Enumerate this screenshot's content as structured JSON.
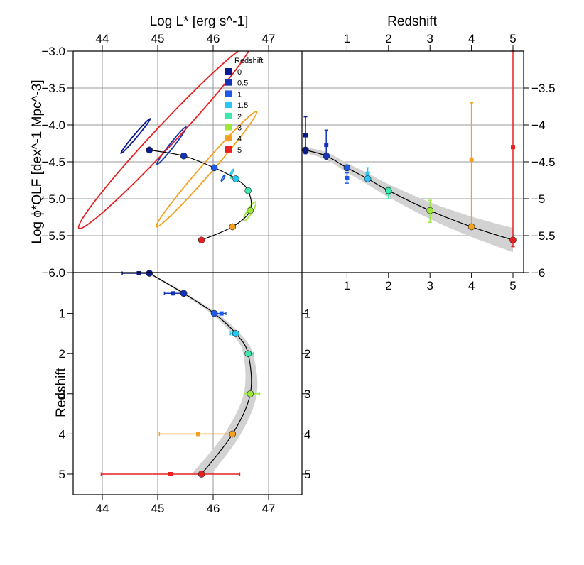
{
  "chart_data": [
    {
      "id": "luminosity-phi",
      "type": "scatter",
      "title": "",
      "xlabel": "Log L* [erg s^-1]",
      "ylabel": "Log ϕ*QLF [dex^-1 Mpc^-3]",
      "xlim": [
        43.6,
        47.6
      ],
      "ylim": [
        -6.0,
        -3.0
      ],
      "xticks": [
        44,
        45,
        46,
        47
      ],
      "yticks": [
        -3.0,
        -3.5,
        -4.0,
        -4.5,
        -5.0,
        -5.5,
        -6.0
      ],
      "ytick_labels": [
        "−3.0",
        "−3.5",
        "−4.0",
        "−4.5",
        "−5.0",
        "−5.5",
        "−6.0"
      ],
      "points": [
        {
          "z": "0",
          "logL": 44.85,
          "logphi": -4.34
        },
        {
          "z": "0.5",
          "logL": 45.47,
          "logphi": -4.42
        },
        {
          "z": "1",
          "logL": 46.02,
          "logphi": -4.58
        },
        {
          "z": "1.5",
          "logL": 46.41,
          "logphi": -4.73
        },
        {
          "z": "2",
          "logL": 46.63,
          "logphi": -4.89
        },
        {
          "z": "3",
          "logL": 46.67,
          "logphi": -5.16
        },
        {
          "z": "4",
          "logL": 46.35,
          "logphi": -5.38
        },
        {
          "z": "5",
          "logL": 45.79,
          "logphi": -5.56
        }
      ],
      "confidence_ellipses": [
        {
          "z": "0",
          "center_logL": 44.6,
          "center_logphi": -4.15,
          "semi_major": 0.34,
          "semi_minor": 0.03,
          "angle_deg": -50
        },
        {
          "z": "0.5",
          "center_logL": 45.25,
          "center_logphi": -4.28,
          "semi_major": 0.35,
          "semi_minor": 0.04,
          "angle_deg": -52
        },
        {
          "z": "1",
          "center_logL": 46.18,
          "center_logphi": -4.72,
          "semi_major": 0.05,
          "semi_minor": 0.014,
          "angle_deg": -60
        },
        {
          "z": "1.5",
          "center_logL": 46.34,
          "center_logphi": -4.64,
          "semi_major": 0.05,
          "semi_minor": 0.014,
          "angle_deg": -60
        },
        {
          "z": "2",
          "center_logL": 46.33,
          "center_logphi": -4.71,
          "semi_major": 0.015,
          "semi_minor": 0.004,
          "angle_deg": -60
        },
        {
          "z": "3",
          "center_logL": 46.66,
          "center_logphi": -5.17,
          "semi_major": 0.16,
          "semi_minor": 0.045,
          "angle_deg": -58
        },
        {
          "z": "4",
          "center_logL": 45.88,
          "center_logphi": -4.6,
          "semi_major": 1.15,
          "semi_minor": 0.1,
          "angle_deg": -49
        },
        {
          "z": "5",
          "center_logL": 45.12,
          "center_logphi": -4.16,
          "semi_major": 1.9,
          "semi_minor": 0.19,
          "angle_deg": -47
        }
      ],
      "legend": {
        "title": "Redshift",
        "placement": "top-center",
        "entries": [
          {
            "label": "0",
            "color": "#0a1a8c"
          },
          {
            "label": "0.5",
            "color": "#1433b8"
          },
          {
            "label": "1",
            "color": "#1f5ae6"
          },
          {
            "label": "1.5",
            "color": "#29c6f2"
          },
          {
            "label": "2",
            "color": "#3de8b0"
          },
          {
            "label": "3",
            "color": "#9be83a"
          },
          {
            "label": "4",
            "color": "#f5a01e"
          },
          {
            "label": "5",
            "color": "#e8201f"
          }
        ]
      }
    },
    {
      "id": "redshift-phi",
      "type": "scatter",
      "xlabel": "Redshift",
      "ylabel": "",
      "xlim": [
        -0.05,
        5.3
      ],
      "ylim": [
        -6.0,
        -3.0
      ],
      "xticks": [
        1,
        2,
        3,
        4,
        5
      ],
      "yticks": [
        -3.5,
        -4.0,
        -4.5,
        -5.0,
        -5.5,
        -6.0
      ],
      "ytick_labels": [
        "−3.5",
        "−4",
        "−4.5",
        "−5",
        "−5.5",
        "−6"
      ],
      "curve_points": [
        {
          "z": "0",
          "x": 0,
          "logphi": -4.34
        },
        {
          "z": "0.5",
          "x": 0.5,
          "logphi": -4.42
        },
        {
          "z": "1",
          "x": 1,
          "logphi": -4.58
        },
        {
          "z": "1.5",
          "x": 1.5,
          "logphi": -4.73
        },
        {
          "z": "2",
          "x": 2,
          "logphi": -4.89
        },
        {
          "z": "3",
          "x": 3,
          "logphi": -5.16
        },
        {
          "z": "4",
          "x": 4,
          "logphi": -5.38
        },
        {
          "z": "5",
          "x": 5,
          "logphi": -5.56
        }
      ],
      "measurements": [
        {
          "z": "0",
          "x": 0,
          "logphi": -4.14,
          "err_low": 0.25,
          "err_high": 0.25
        },
        {
          "z": "0.5",
          "x": 0.5,
          "logphi": -4.27,
          "err_low": 0.2,
          "err_high": 0.2
        },
        {
          "z": "1",
          "x": 1,
          "logphi": -4.72,
          "err_low": 0.07,
          "err_high": 0.07
        },
        {
          "z": "1.5",
          "x": 1.5,
          "logphi": -4.66,
          "err_low": 0.08,
          "err_high": 0.08
        },
        {
          "z": "2",
          "x": 2,
          "logphi": -4.92,
          "err_low": 0.08,
          "err_high": 0.08
        },
        {
          "z": "3",
          "x": 3,
          "logphi": -5.17,
          "err_low": 0.15,
          "err_high": 0.15
        },
        {
          "z": "4",
          "x": 4,
          "logphi": -4.47,
          "err_low": 0.92,
          "err_high": 0.77
        },
        {
          "z": "5",
          "x": 5,
          "logphi": -4.3,
          "err_low": 1.35,
          "err_high": 1.3
        }
      ]
    },
    {
      "id": "luminosity-redshift",
      "type": "scatter",
      "xlabel": "",
      "ylabel": "Redshift",
      "xlim": [
        43.6,
        47.6
      ],
      "ylim_reversed": [
        0,
        5.5
      ],
      "xticks": [
        44,
        45,
        46,
        47
      ],
      "yticks": [
        1,
        2,
        3,
        4,
        5
      ],
      "curve_points": [
        {
          "z": "0",
          "logL": 44.85,
          "y": 0
        },
        {
          "z": "0.5",
          "logL": 45.47,
          "y": 0.5
        },
        {
          "z": "1",
          "logL": 46.02,
          "y": 1
        },
        {
          "z": "1.5",
          "logL": 46.41,
          "y": 1.5
        },
        {
          "z": "2",
          "logL": 46.63,
          "y": 2
        },
        {
          "z": "3",
          "logL": 46.67,
          "y": 3
        },
        {
          "z": "4",
          "logL": 46.35,
          "y": 4
        },
        {
          "z": "5",
          "logL": 45.79,
          "y": 5
        }
      ],
      "measurements": [
        {
          "z": "0",
          "logL": 44.66,
          "y": 0,
          "err_low": 0.3,
          "err_high": 0.2
        },
        {
          "z": "0.5",
          "logL": 45.27,
          "y": 0.5,
          "err_low": 0.15,
          "err_high": 0.2
        },
        {
          "z": "1",
          "logL": 46.15,
          "y": 1,
          "err_low": 0.08,
          "err_high": 0.08
        },
        {
          "z": "1.5",
          "logL": 46.38,
          "y": 1.5,
          "err_low": 0.07,
          "err_high": 0.07
        },
        {
          "z": "2",
          "logL": 46.67,
          "y": 2,
          "err_low": 0.06,
          "err_high": 0.06
        },
        {
          "z": "3",
          "logL": 46.7,
          "y": 3,
          "err_low": 0.14,
          "err_high": 0.14
        },
        {
          "z": "4",
          "logL": 45.73,
          "y": 4,
          "err_low": 0.7,
          "err_high": 0.62
        },
        {
          "z": "5",
          "logL": 45.23,
          "y": 5,
          "err_low": 1.25,
          "err_high": 1.25
        }
      ]
    }
  ]
}
